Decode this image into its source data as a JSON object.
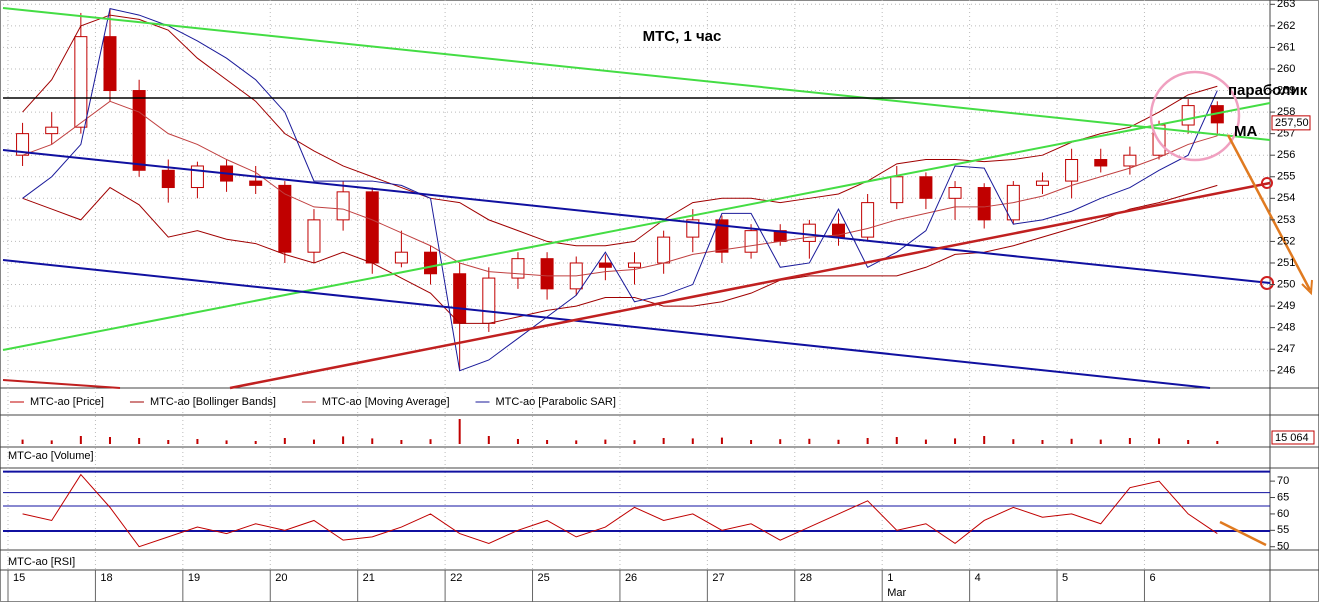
{
  "chart_data": [
    {
      "type": "candlestick",
      "title": "МТС,  1 час",
      "annotations": [
        "параболик",
        "MA"
      ],
      "last_value": {
        "value": 257.5,
        "label": "257,50"
      },
      "categories": [
        "15",
        null,
        null,
        "18",
        null,
        null,
        "19",
        null,
        null,
        "20",
        null,
        null,
        "21",
        null,
        null,
        "22",
        null,
        null,
        "25",
        null,
        null,
        "26",
        null,
        null,
        "27",
        null,
        null,
        "28",
        null,
        null,
        "1",
        null,
        null,
        "4",
        null,
        null,
        "5",
        null,
        null,
        "6",
        null,
        null
      ],
      "subcategories": [
        null,
        null,
        null,
        null,
        null,
        null,
        null,
        null,
        null,
        null,
        null,
        null,
        null,
        null,
        null,
        null,
        null,
        null,
        null,
        null,
        null,
        null,
        null,
        null,
        null,
        null,
        null,
        null,
        null,
        null,
        "Mar",
        null,
        null,
        null,
        null,
        null,
        null,
        null,
        null,
        null,
        null,
        null
      ],
      "ylim": [
        245.2,
        263.2
      ],
      "yticks": [
        246,
        247,
        248,
        249,
        250,
        251,
        252,
        253,
        254,
        255,
        256,
        257,
        258,
        259,
        260,
        261,
        262,
        263
      ],
      "grid": true,
      "series": [
        {
          "name": "MTC-ao [Price]",
          "color": "#c00000",
          "style": "candles",
          "open": [
            256,
            257,
            257.3,
            261.5,
            259,
            255.3,
            254.5,
            255.5,
            254.8,
            254.6,
            251.5,
            253,
            254.3,
            251,
            251.5,
            250.5,
            248.2,
            250.3,
            251.2,
            249.8,
            251,
            250.8,
            251,
            252.2,
            253,
            251.5,
            252.5,
            252,
            252.8,
            252.2,
            253.8,
            255,
            254,
            254.5,
            253,
            254.6,
            254.8,
            255.8,
            255.5,
            256,
            257.4,
            258.3
          ],
          "high": [
            257.5,
            258,
            262.6,
            262.8,
            259.5,
            255.8,
            255.7,
            255.8,
            255.5,
            254.8,
            253.5,
            254.8,
            254.5,
            252.5,
            251.8,
            251,
            250.8,
            251.5,
            251.5,
            251.3,
            251.4,
            251.5,
            252.5,
            253.5,
            253.2,
            252.8,
            252.8,
            253,
            253.3,
            254.2,
            255.5,
            255.2,
            254.8,
            254.7,
            254.8,
            255.2,
            256.3,
            256.3,
            256.4,
            257.6,
            258.6,
            258.5
          ],
          "low": [
            255.5,
            256.5,
            257,
            258.5,
            255,
            253.8,
            254,
            254.3,
            254.2,
            251,
            251,
            252.5,
            250.5,
            250.8,
            250,
            246,
            247.8,
            249.8,
            249.3,
            249.5,
            250.2,
            250,
            250.5,
            251.5,
            251,
            251.2,
            251.8,
            251.2,
            251.8,
            252,
            253.5,
            253.5,
            253,
            252.6,
            252.8,
            254.2,
            254,
            255.2,
            255.1,
            255.8,
            257,
            256.9
          ],
          "close": [
            257,
            257.3,
            261.5,
            259,
            255.3,
            254.5,
            255.5,
            254.8,
            254.6,
            251.5,
            253,
            254.3,
            251,
            251.5,
            250.5,
            248.2,
            250.3,
            251.2,
            249.8,
            251,
            250.8,
            251,
            252.2,
            253,
            251.5,
            252.5,
            252,
            252.8,
            252.2,
            253.8,
            255,
            254,
            254.5,
            253,
            254.6,
            254.8,
            255.8,
            255.5,
            256,
            257.4,
            258.3,
            257.5
          ]
        },
        {
          "name": "MTC-ao [Bollinger Bands]",
          "color": "#a00000",
          "style": "band",
          "upper": [
            258,
            259.5,
            262,
            262.5,
            262.3,
            261.8,
            260.5,
            259.5,
            258.5,
            257,
            256.2,
            255.5,
            255,
            254.5,
            254,
            253.8,
            253,
            252.5,
            252,
            251.8,
            251.8,
            252,
            253,
            253.8,
            254,
            254,
            253.8,
            254,
            254.2,
            254.8,
            255.6,
            255.8,
            255.8,
            255.7,
            255.8,
            256,
            256.6,
            257,
            257.3,
            258,
            258.8,
            259.2
          ],
          "lower": [
            254,
            253.5,
            253,
            254.5,
            253.7,
            252.2,
            252.5,
            252.1,
            251.9,
            251.4,
            251,
            251.5,
            251,
            250.3,
            249.6,
            248.2,
            248.2,
            248.5,
            248.8,
            249,
            249.4,
            249.4,
            249,
            249,
            249.2,
            249.6,
            250.2,
            250.4,
            250.4,
            250.4,
            250.4,
            250.8,
            251.4,
            251.5,
            251.8,
            252.2,
            252.6,
            253,
            253.5,
            253.8,
            254.2,
            254.6
          ]
        },
        {
          "name": "MTC-ao [Moving Average]",
          "color": "#c04040",
          "style": "line",
          "values": [
            256,
            256.5,
            257.5,
            258.5,
            258,
            257,
            256.5,
            255.8,
            255.2,
            254.2,
            253.6,
            253.5,
            253,
            252.4,
            251.8,
            251,
            250.6,
            250.5,
            250.4,
            250.4,
            250.6,
            250.7,
            251,
            251.4,
            251.6,
            251.8,
            252,
            252.2,
            252.3,
            252.6,
            253,
            253.3,
            253.6,
            253.6,
            253.8,
            254.1,
            254.6,
            255,
            255.4,
            255.9,
            256.5,
            256.9
          ]
        },
        {
          "name": "MTC-ao [Parabolic SAR]",
          "color": "#1a1a9a",
          "style": "line",
          "values": [
            254,
            255,
            256.5,
            262.8,
            262.5,
            262,
            261.3,
            260.5,
            259.5,
            258,
            254.8,
            254.8,
            254.8,
            254.6,
            254,
            246,
            246.5,
            247.5,
            248.5,
            249.5,
            251.5,
            249.2,
            249.5,
            250,
            253.3,
            253.3,
            250.8,
            251,
            253.5,
            250.8,
            251.5,
            252.5,
            255.5,
            255.4,
            252.8,
            253,
            253.4,
            254,
            254.5,
            255.3,
            256,
            259
          ]
        }
      ]
    },
    {
      "type": "bar",
      "title": "MTC-ao [Volume]",
      "color": "#c00000",
      "ylim": [
        0,
        130000
      ],
      "last_value": {
        "value": 15064,
        "label": "15 064"
      },
      "values": [
        22000,
        18000,
        40000,
        35000,
        30000,
        20000,
        25000,
        18000,
        15000,
        30000,
        22000,
        38000,
        28000,
        20000,
        24000,
        125000,
        40000,
        25000,
        20000,
        18000,
        22000,
        19000,
        30000,
        28000,
        32000,
        20000,
        24000,
        26000,
        21000,
        30000,
        35000,
        22000,
        28000,
        40000,
        24000,
        20000,
        26000,
        22000,
        30000,
        28000,
        20000,
        15064
      ]
    },
    {
      "type": "line",
      "title": "MTC-ao [RSI]",
      "color": "#c00000",
      "ylim": [
        49,
        74
      ],
      "yticks": [
        50,
        55,
        60,
        65,
        70
      ],
      "levels": [
        72.9,
        66.5,
        62.4,
        54.8
      ],
      "values": [
        60,
        58,
        72,
        62,
        50,
        53,
        56,
        54,
        57,
        55,
        58,
        52,
        53,
        56,
        60,
        54,
        51,
        55,
        58,
        53,
        56,
        62,
        58,
        60,
        55,
        57,
        52,
        56,
        60,
        64,
        55,
        57,
        51,
        58,
        62,
        59,
        60,
        57,
        68,
        70,
        60,
        54
      ]
    }
  ]
}
